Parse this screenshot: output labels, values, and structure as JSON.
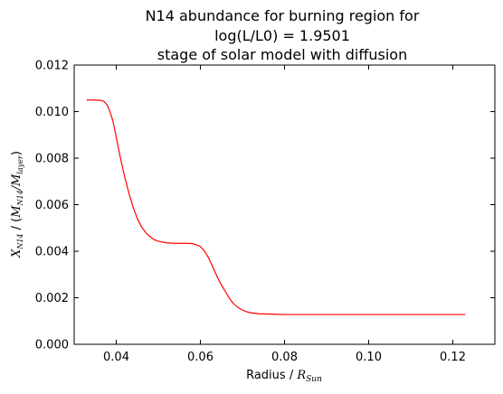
{
  "chart_data": {
    "type": "line",
    "title_lines": [
      "N14 abundance for burning region for",
      "log(L/L0) = 1.9501",
      "stage of solar model with diffusion"
    ],
    "xlabel_prefix": "Radius / ",
    "xlabel_math_main": "R",
    "xlabel_math_sub": "Sun",
    "ylabel_parts": {
      "x_main": "X",
      "x_sub": "N14",
      "sep": " / (",
      "m1_main": "M",
      "m1_sub": "N14",
      "slash": "/",
      "m2_main": "M",
      "m2_sub": "layer",
      "close": ")"
    },
    "xlim": [
      0.03,
      0.13
    ],
    "ylim": [
      0.0,
      0.012
    ],
    "xticks": [
      0.04,
      0.06,
      0.08,
      0.1,
      0.12
    ],
    "xtick_labels": [
      "0.04",
      "0.06",
      "0.08",
      "0.10",
      "0.12"
    ],
    "yticks": [
      0.0,
      0.002,
      0.004,
      0.006,
      0.008,
      0.01,
      0.012
    ],
    "ytick_labels": [
      "0.000",
      "0.002",
      "0.004",
      "0.006",
      "0.008",
      "0.010",
      "0.012"
    ],
    "grid": false,
    "series": [
      {
        "color": "#ff0000",
        "x": [
          0.033,
          0.0345,
          0.036,
          0.037,
          0.0378,
          0.0385,
          0.0392,
          0.04,
          0.041,
          0.042,
          0.043,
          0.044,
          0.045,
          0.046,
          0.047,
          0.048,
          0.049,
          0.05,
          0.052,
          0.054,
          0.056,
          0.057,
          0.058,
          0.059,
          0.06,
          0.061,
          0.062,
          0.063,
          0.064,
          0.065,
          0.066,
          0.067,
          0.068,
          0.069,
          0.07,
          0.071,
          0.072,
          0.074,
          0.076,
          0.078,
          0.08,
          0.085,
          0.09,
          0.1,
          0.11,
          0.123
        ],
        "y": [
          0.0105,
          0.0105,
          0.01049,
          0.01045,
          0.0103,
          0.01,
          0.0096,
          0.0089,
          0.008,
          0.0072,
          0.0065,
          0.0059,
          0.0054,
          0.00505,
          0.0048,
          0.00463,
          0.0045,
          0.00443,
          0.00436,
          0.00434,
          0.00434,
          0.00434,
          0.00433,
          0.00428,
          0.0042,
          0.004,
          0.0037,
          0.0033,
          0.0029,
          0.00255,
          0.00225,
          0.00195,
          0.00172,
          0.00158,
          0.00147,
          0.0014,
          0.00135,
          0.00131,
          0.0013,
          0.00129,
          0.00128,
          0.00128,
          0.00128,
          0.00128,
          0.00128,
          0.00128
        ]
      }
    ]
  }
}
